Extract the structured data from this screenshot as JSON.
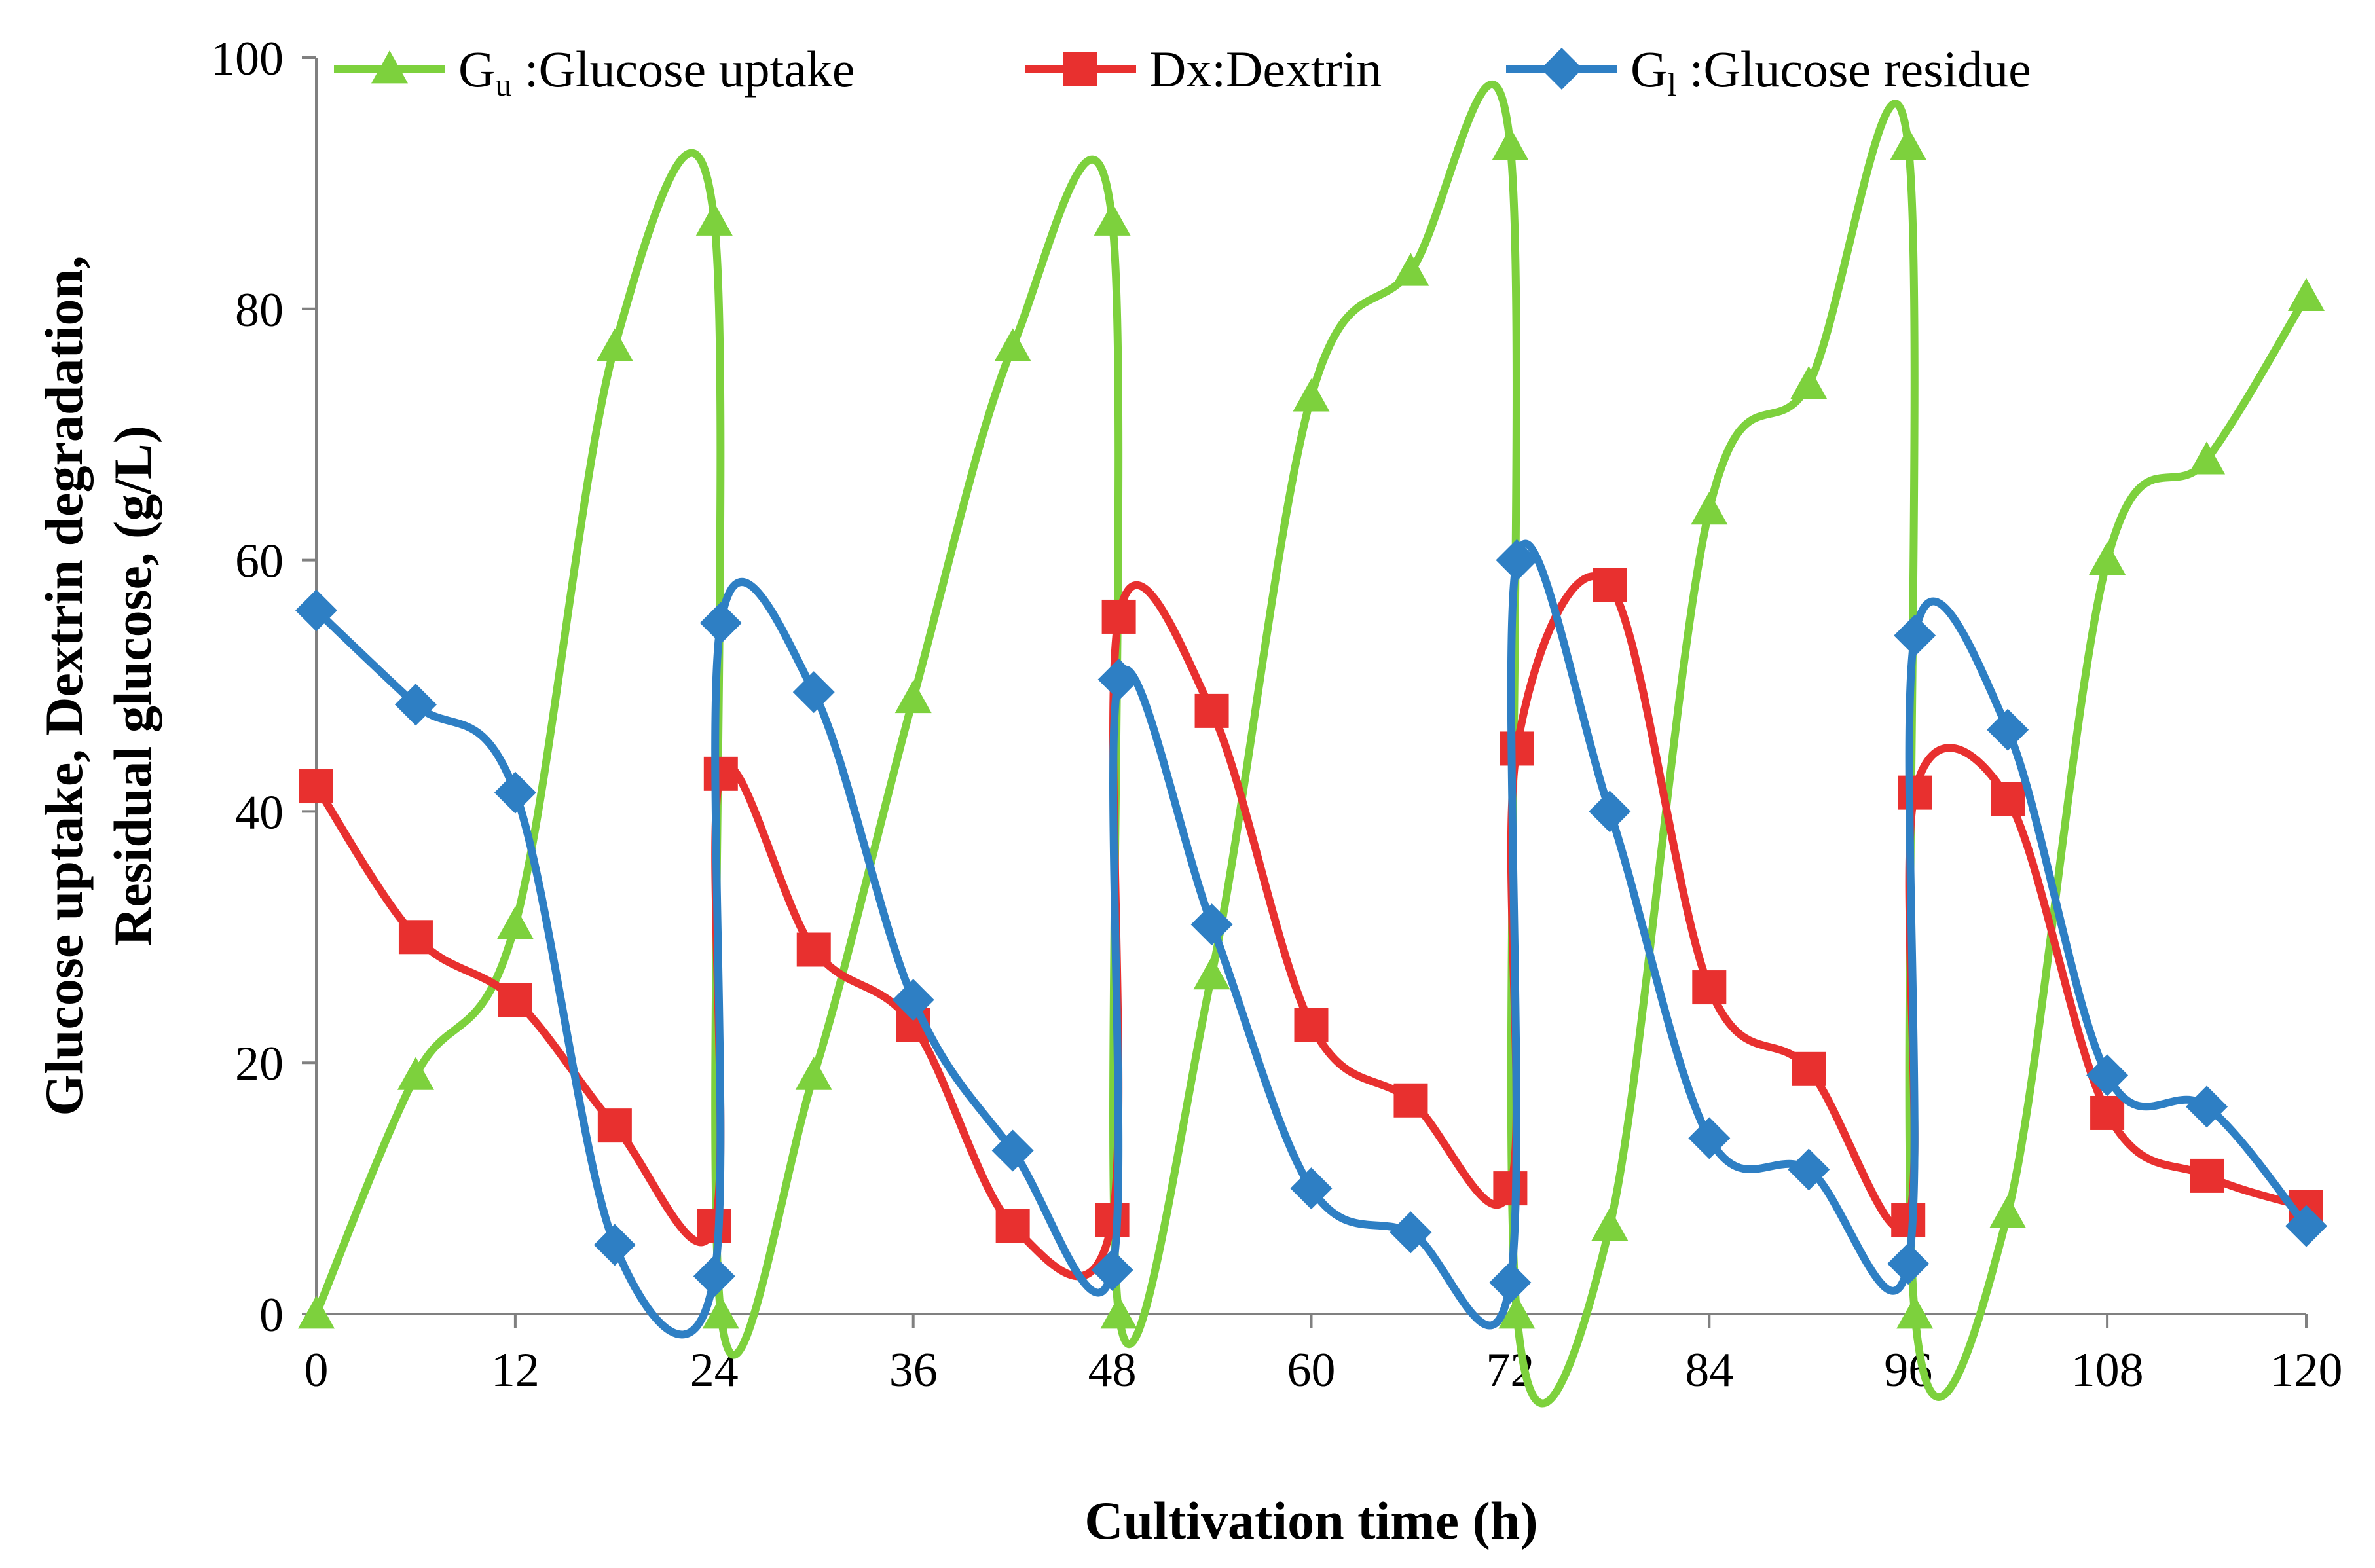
{
  "chart_data": {
    "type": "line",
    "title": "",
    "xlabel": "Cultivation time (h)",
    "ylabel": [
      "Glucose uptake, Dextrin degradation,",
      "Residual glucose, (g/L)"
    ],
    "xlim": [
      0,
      120
    ],
    "ylim": [
      0,
      100
    ],
    "xticks": [
      0,
      12,
      24,
      36,
      48,
      60,
      72,
      84,
      96,
      108,
      120
    ],
    "yticks": [
      0,
      20,
      40,
      60,
      80,
      100
    ],
    "grid": false,
    "legend_position": "top",
    "series": [
      {
        "name": "Gu :Glucose uptake",
        "legend_main": "G",
        "legend_sub": "u",
        "legend_rest": " :Glucose uptake",
        "color": "#7dd13d",
        "marker": "triangle",
        "x": [
          0,
          6,
          12,
          18,
          24,
          24,
          30,
          36,
          42,
          48,
          48,
          54,
          60,
          66,
          72,
          72,
          78,
          84,
          90,
          96,
          96,
          102,
          108,
          114,
          120
        ],
        "y": [
          0,
          19,
          31,
          77,
          87,
          0,
          19,
          49,
          77,
          87,
          0,
          27,
          73,
          83,
          93,
          0,
          7,
          64,
          74,
          93,
          0,
          8,
          60,
          68,
          81
        ]
      },
      {
        "name": "Dx:Dextrin",
        "legend_main": "Dx:Dextrin",
        "legend_sub": "",
        "legend_rest": "",
        "color": "#e8302f",
        "marker": "square",
        "x": [
          0,
          6,
          12,
          18,
          24,
          24,
          30,
          36,
          42,
          48,
          48,
          54,
          60,
          66,
          72,
          72,
          78,
          84,
          90,
          96,
          96,
          102,
          108,
          114,
          120
        ],
        "y": [
          42,
          30,
          25,
          15,
          7,
          43,
          29,
          23,
          7,
          7.5,
          55.5,
          48,
          23,
          17,
          10,
          45,
          58,
          26,
          19.5,
          7.5,
          41.5,
          41,
          16,
          11,
          8.5
        ]
      },
      {
        "name": "Gl :Glucose residue",
        "legend_main": "G",
        "legend_sub": "l",
        "legend_rest": " :Glucose residue",
        "color": "#2e7fc4",
        "marker": "diamond",
        "x": [
          0,
          6,
          12,
          18,
          24,
          24,
          30,
          36,
          42,
          48,
          48,
          54,
          60,
          66,
          72,
          72,
          78,
          84,
          90,
          96,
          96,
          102,
          108,
          114,
          120
        ],
        "y": [
          56,
          48.5,
          41.5,
          5.5,
          3,
          55,
          49.5,
          25,
          13,
          3.5,
          50.5,
          31,
          10,
          6.5,
          2.5,
          60,
          40,
          14,
          11.5,
          4,
          54,
          46.5,
          19,
          16.5,
          7
        ]
      }
    ]
  }
}
